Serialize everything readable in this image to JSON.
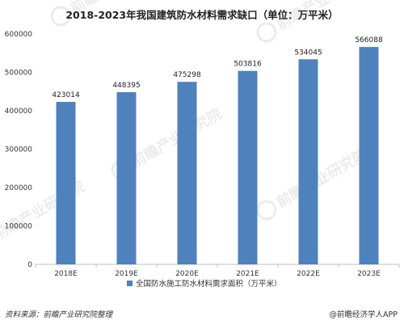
{
  "chart_data": {
    "type": "bar",
    "title": "2018-2023年我国建筑防水材料需求缺口（单位：万平米）",
    "categories": [
      "2018E",
      "2019E",
      "2020E",
      "2021E",
      "2022E",
      "2023E"
    ],
    "series": [
      {
        "name": "全国防水施工防水材料需求面积（万平米）",
        "values": [
          423014,
          448395,
          475298,
          503816,
          534045,
          566088
        ]
      }
    ],
    "data_labels": [
      "423014",
      "448395",
      "475298",
      "503816",
      "534045",
      "566088"
    ],
    "yticks": [
      "0",
      "100000",
      "200000",
      "300000",
      "400000",
      "500000",
      "600000"
    ],
    "ylim": [
      0,
      600000
    ],
    "grid": false,
    "legend_position": "bottom",
    "bar_color": "#4f81bd"
  },
  "footer": {
    "source": "资料来源：前瞻产业研究院整理",
    "credit": "@前瞻经济学人APP"
  },
  "watermark": {
    "text": "前瞻产业研究院"
  }
}
